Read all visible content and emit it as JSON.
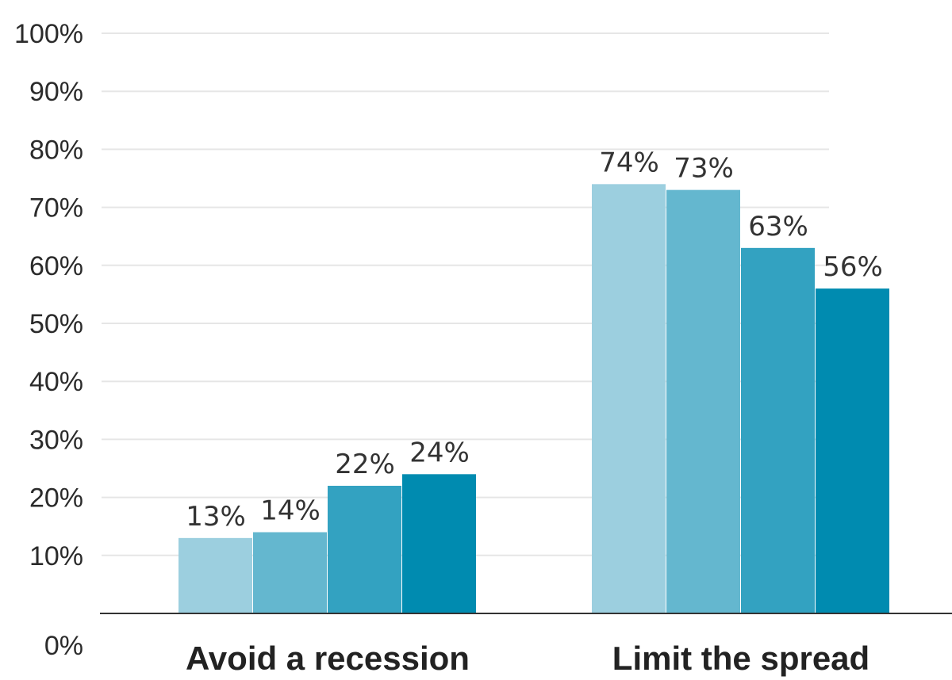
{
  "chart_data": {
    "type": "bar",
    "categories": [
      "Avoid a recession",
      "Limit the spread"
    ],
    "series": [
      {
        "values": [
          13,
          74
        ],
        "color": "#9ccfdf"
      },
      {
        "values": [
          14,
          73
        ],
        "color": "#64b7cf"
      },
      {
        "values": [
          22,
          63
        ],
        "color": "#33a2c1"
      },
      {
        "values": [
          24,
          56
        ],
        "color": "#008bb0"
      }
    ],
    "yticks": [
      "0%",
      "10%",
      "20%",
      "30%",
      "40%",
      "50%",
      "60%",
      "70%",
      "80%",
      "90%",
      "100%"
    ],
    "ylim": [
      0,
      100
    ],
    "value_suffix": "%",
    "grid": true,
    "legend": "none",
    "title": "",
    "xlabel": "",
    "ylabel": ""
  }
}
